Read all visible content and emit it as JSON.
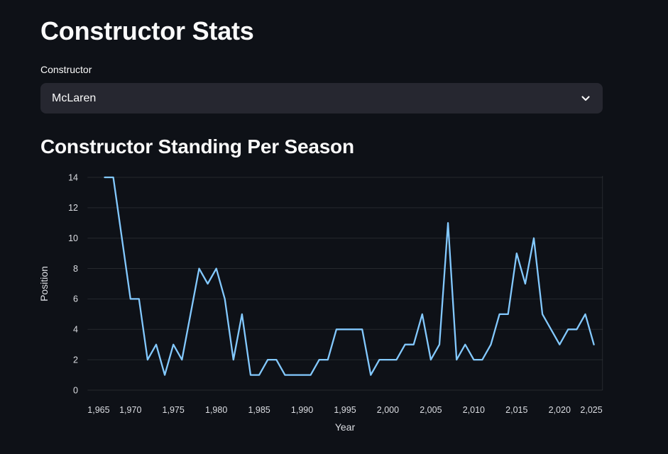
{
  "page": {
    "title": "Constructor Stats",
    "section_title": "Constructor Standing Per Season"
  },
  "constructor_select": {
    "label": "Constructor",
    "value": "McLaren",
    "icon": "chevron-down"
  },
  "colors": {
    "background": "#0e1117",
    "widget_background": "#262730",
    "text": "#fafafa",
    "tick_label": "#dcdee3",
    "gridline": "rgba(255,255,255,0.10)",
    "line": "#83c9ff"
  },
  "chart_data": {
    "type": "line",
    "title": "Constructor Standing Per Season",
    "xlabel": "Year",
    "ylabel": "Position",
    "x_range": [
      1965,
      2025
    ],
    "y_range": [
      0,
      14
    ],
    "grid": "horizontal-only",
    "legend": "none",
    "x_tick_years": [
      1965,
      1970,
      1975,
      1980,
      1985,
      1990,
      1995,
      2000,
      2005,
      2010,
      2015,
      2020,
      2025
    ],
    "x_tick_labels": [
      "1,965",
      "1,970",
      "1,975",
      "1,980",
      "1,985",
      "1,990",
      "1,995",
      "2,000",
      "2,005",
      "2,010",
      "2,015",
      "2,020",
      "2,025"
    ],
    "y_ticks": [
      0,
      2,
      4,
      6,
      8,
      10,
      12,
      14
    ],
    "series": [
      {
        "name": "McLaren",
        "color": "#83c9ff",
        "x": [
          1967,
          1968,
          1969,
          1970,
          1971,
          1972,
          1973,
          1974,
          1975,
          1976,
          1977,
          1978,
          1979,
          1980,
          1981,
          1982,
          1983,
          1984,
          1985,
          1986,
          1987,
          1988,
          1989,
          1990,
          1991,
          1992,
          1993,
          1994,
          1995,
          1996,
          1997,
          1998,
          1999,
          2000,
          2001,
          2002,
          2003,
          2004,
          2005,
          2006,
          2007,
          2008,
          2009,
          2010,
          2011,
          2012,
          2013,
          2014,
          2015,
          2016,
          2017,
          2018,
          2019,
          2020,
          2021,
          2022,
          2023,
          2024
        ],
        "y": [
          14,
          14,
          10,
          6,
          6,
          2,
          3,
          1,
          3,
          2,
          5,
          8,
          7,
          8,
          6,
          2,
          5,
          1,
          1,
          2,
          2,
          1,
          1,
          1,
          1,
          2,
          2,
          4,
          4,
          4,
          4,
          1,
          2,
          2,
          2,
          3,
          3,
          5,
          2,
          3,
          11,
          2,
          3,
          2,
          2,
          3,
          5,
          5,
          9,
          7,
          10,
          5,
          4,
          3,
          4,
          4,
          5,
          3
        ]
      }
    ]
  }
}
